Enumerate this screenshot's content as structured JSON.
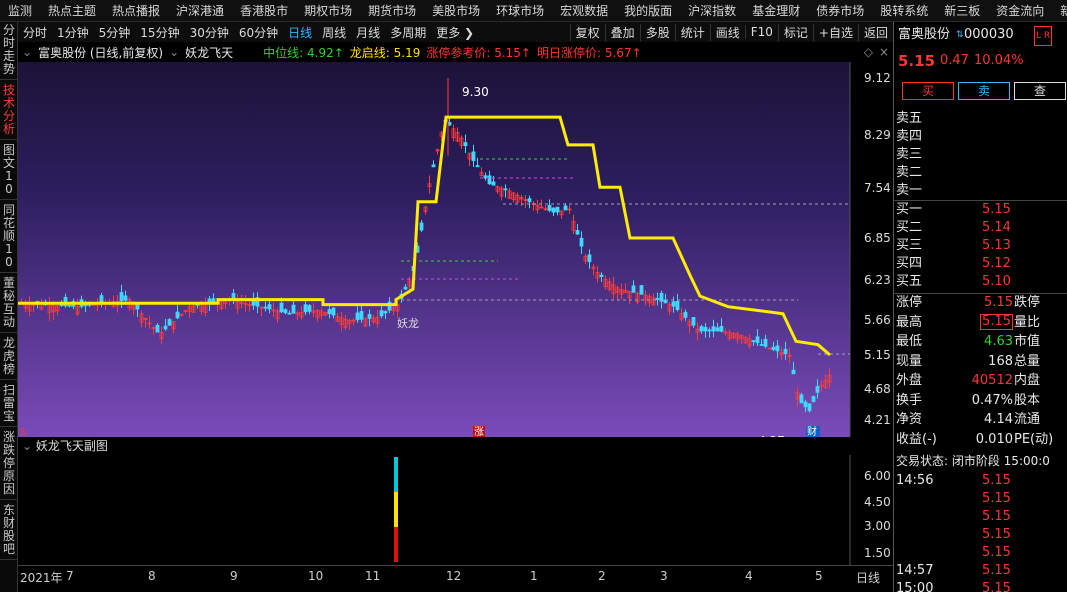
{
  "top_nav": [
    "监测",
    "热点主题",
    "热点播报",
    "沪深港通",
    "香港股市",
    "期权市场",
    "期货市场",
    "美股市场",
    "环球市场",
    "宏观数据",
    "我的版面",
    "沪深指数",
    "基金理财",
    "债券市场",
    "股转系统",
    "新三板",
    "资金流向",
    "新股IPO"
  ],
  "left_tabs": [
    {
      "label": "分时走势",
      "active": false
    },
    {
      "label": "技术分析",
      "active": true
    },
    {
      "label": "图文10",
      "active": false
    },
    {
      "label": "同花顺10",
      "active": false
    },
    {
      "label": "董秘互动",
      "active": false
    },
    {
      "label": "龙虎榜",
      "active": false
    },
    {
      "label": "扫雷宝",
      "active": false
    },
    {
      "label": "涨跌停原因",
      "active": false
    },
    {
      "label": "东财股吧",
      "active": false
    }
  ],
  "toolbar": {
    "periods": [
      "分时",
      "1分钟",
      "5分钟",
      "15分钟",
      "30分钟",
      "60分钟",
      "日线",
      "周线",
      "月线",
      "多周期",
      "更多 ❯"
    ],
    "active_period": "日线",
    "actions": [
      "复权",
      "叠加",
      "多股",
      "统计",
      "画线",
      "F10",
      "标记",
      "+自选",
      "返回"
    ]
  },
  "info": {
    "stock_title": "富奥股份 (日线,前复权)",
    "indicator": "妖龙飞天",
    "zhongwei": "中位线: 4.92↑",
    "longqi": "龙启线: 5.19",
    "zhangting_ref": "涨停参考价: 5.15↑",
    "tomorrow": "明日涨停价: 5.67↑"
  },
  "chart_data": {
    "type": "candlestick",
    "y_ticks": [
      "9.12",
      "8.29",
      "7.54",
      "6.85",
      "6.23",
      "5.66",
      "5.15",
      "4.68",
      "4.21"
    ],
    "high_label": "9.30",
    "low_label": "4.27",
    "signal_label": "妖龙",
    "x_labels": [
      "2021年",
      "7",
      "8",
      "9",
      "10",
      "11",
      "12",
      "1",
      "2",
      "3",
      "4",
      "5"
    ],
    "period_label": "日线",
    "sub_title": "妖龙飞天副图",
    "sub_y_ticks": [
      "6.00",
      "4.50",
      "3.00",
      "1.50"
    ],
    "marker_zhang": "涨",
    "marker_cai": "财",
    "marker_s": "$"
  },
  "quote": {
    "name": "富奥股份",
    "code": "000030",
    "tag": "L R",
    "price": "5.15",
    "change": "0.47",
    "pct": "10.04%",
    "buy_btn": "买",
    "sell_btn": "卖",
    "query_btn": "查",
    "asks": [
      {
        "label": "卖五",
        "price": "",
        "vol": ""
      },
      {
        "label": "卖四",
        "price": "",
        "vol": ""
      },
      {
        "label": "卖三",
        "price": "",
        "vol": ""
      },
      {
        "label": "卖二",
        "price": "",
        "vol": ""
      },
      {
        "label": "卖一",
        "price": "",
        "vol": ""
      }
    ],
    "bids": [
      {
        "label": "买一",
        "price": "5.15"
      },
      {
        "label": "买二",
        "price": "5.14"
      },
      {
        "label": "买三",
        "price": "5.13"
      },
      {
        "label": "买四",
        "price": "5.12"
      },
      {
        "label": "买五",
        "price": "5.10"
      }
    ],
    "stats": [
      {
        "l1": "涨停",
        "v1": "5.15",
        "c1": "red",
        "l2": "跌停",
        "boxed": false
      },
      {
        "l1": "最高",
        "v1": "5.15",
        "c1": "red",
        "l2": "量比",
        "boxed": true
      },
      {
        "l1": "最低",
        "v1": "4.63",
        "c1": "green",
        "l2": "市值",
        "boxed": false
      },
      {
        "l1": "现量",
        "v1": "168",
        "c1": "white",
        "l2": "总量",
        "boxed": false
      },
      {
        "l1": "外盘",
        "v1": "40512",
        "c1": "red",
        "l2": "内盘",
        "boxed": false
      },
      {
        "l1": "换手",
        "v1": "0.47%",
        "c1": "white",
        "l2": "股本",
        "boxed": false
      },
      {
        "l1": "净资",
        "v1": "4.14",
        "c1": "white",
        "l2": "流通",
        "boxed": false
      },
      {
        "l1": "收益(-)",
        "v1": "0.010",
        "c1": "white",
        "l2": "PE(动)",
        "boxed": false
      }
    ],
    "trade_status": "交易状态: 闭市阶段 15:00:0",
    "ticks": [
      {
        "time": "14:56",
        "price": "5.15"
      },
      {
        "time": "",
        "price": "5.15"
      },
      {
        "time": "",
        "price": "5.15"
      },
      {
        "time": "",
        "price": "5.15"
      },
      {
        "time": "",
        "price": "5.15"
      },
      {
        "time": "14:57",
        "price": "5.15"
      },
      {
        "time": "15:00",
        "price": "5.15"
      }
    ]
  }
}
